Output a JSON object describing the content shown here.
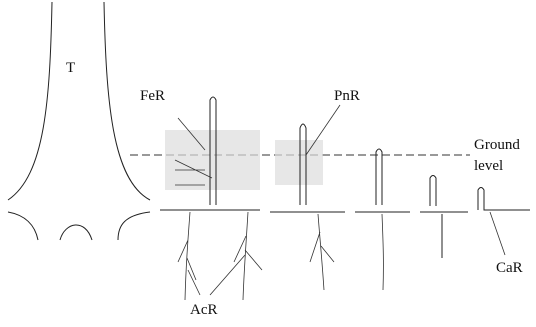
{
  "nodes": [
    {
      "label": "T"
    },
    {
      "label": "FeR"
    },
    {
      "label": "PnR"
    },
    {
      "label": [
        "Ground",
        "level"
      ]
    },
    {
      "label": "CaR"
    },
    {
      "label": "AcR"
    }
  ]
}
